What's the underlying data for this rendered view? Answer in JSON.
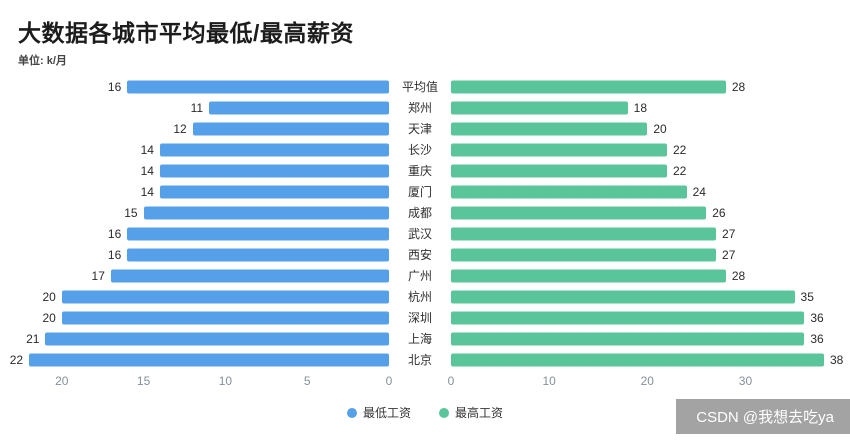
{
  "title": "大数据各城市平均最低/最高薪资",
  "subtitle": "单位: k/月",
  "watermark": "CSDN @我想去吃ya",
  "colors": {
    "min_bar": "#55a0e8",
    "max_bar": "#5ac59a"
  },
  "chart_data": {
    "type": "bar",
    "orientation": "horizontal-bidirectional",
    "title": "大数据各城市平均最低/最高薪资",
    "unit": "k/月",
    "categories": [
      "平均值",
      "郑州",
      "天津",
      "长沙",
      "重庆",
      "厦门",
      "成都",
      "武汉",
      "西安",
      "广州",
      "杭州",
      "深圳",
      "上海",
      "北京"
    ],
    "series": [
      {
        "name": "最低工资",
        "direction": "left",
        "color": "#55a0e8",
        "values": [
          16,
          11,
          12,
          14,
          14,
          14,
          15,
          16,
          16,
          17,
          20,
          20,
          21,
          22
        ]
      },
      {
        "name": "最高工资",
        "direction": "right",
        "color": "#5ac59a",
        "values": [
          28,
          18,
          20,
          22,
          22,
          24,
          26,
          27,
          27,
          28,
          35,
          36,
          36,
          38
        ]
      }
    ],
    "left_axis": {
      "ticks": [
        20,
        15,
        10,
        5,
        0
      ],
      "max": 22.8,
      "reversed": true
    },
    "right_axis": {
      "ticks": [
        0,
        10,
        20,
        30
      ],
      "max": 38
    },
    "legend": [
      "最低工资",
      "最高工资"
    ],
    "legend_position": "bottom-center",
    "grid": false,
    "value_labels": true
  }
}
